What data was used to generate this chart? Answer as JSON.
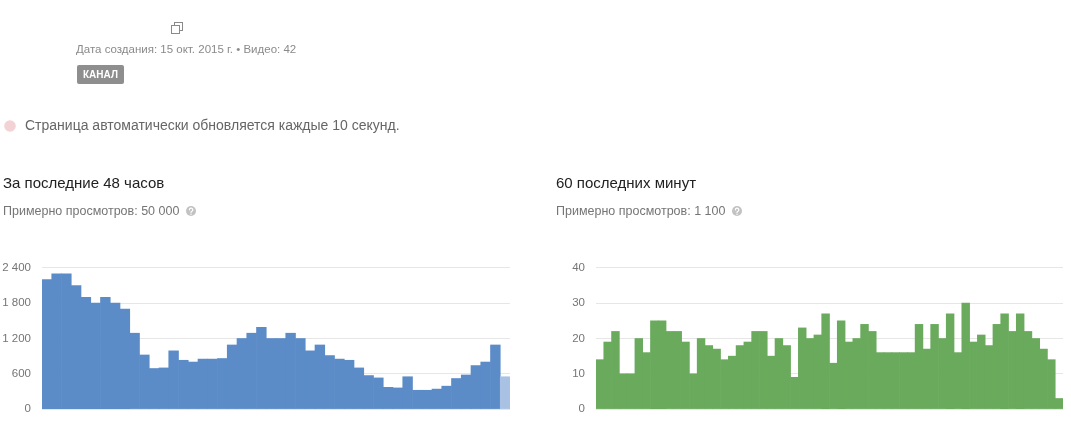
{
  "chart_data": [
    {
      "type": "other",
      "annotations": [
        "Дата создания: 15 окт. 2015 г. • Видео: 42",
        "КАНАЛ",
        "Страница автоматически обновляется каждые 10 секунд."
      ]
    },
    {
      "type": "bar",
      "title": "За последние 48 часов",
      "subtitle": "Примерно просмотров: 50 000",
      "categories": [
        null,
        null,
        null,
        null,
        null,
        null,
        null,
        null,
        null,
        null,
        null,
        null,
        null,
        null,
        null,
        null,
        null,
        null,
        null,
        null,
        null,
        null,
        null,
        null,
        null,
        null,
        null,
        null,
        null,
        null,
        null,
        null,
        null,
        null,
        null,
        null,
        null,
        null,
        null,
        null,
        null,
        null,
        null,
        null,
        null,
        null,
        null,
        null
      ],
      "values": [
        2200,
        2300,
        2300,
        2100,
        1900,
        1800,
        1900,
        1800,
        1700,
        1290,
        920,
        690,
        700,
        990,
        830,
        800,
        850,
        850,
        860,
        1090,
        1200,
        1290,
        1390,
        1200,
        1200,
        1290,
        1200,
        990,
        1090,
        910,
        850,
        830,
        700,
        570,
        530,
        370,
        360,
        550,
        320,
        320,
        340,
        390,
        520,
        580,
        740,
        800,
        1090,
        550
      ],
      "colors": [
        "#5b8cc8",
        "#5b8cc8",
        "#5b8cc8",
        "#5b8cc8",
        "#5b8cc8",
        "#5b8cc8",
        "#5b8cc8",
        "#5b8cc8",
        "#5b8cc8",
        "#5b8cc8",
        "#5b8cc8",
        "#5b8cc8",
        "#5b8cc8",
        "#5b8cc8",
        "#5b8cc8",
        "#5b8cc8",
        "#5b8cc8",
        "#5b8cc8",
        "#5b8cc8",
        "#5b8cc8",
        "#5b8cc8",
        "#5b8cc8",
        "#5b8cc8",
        "#5b8cc8",
        "#5b8cc8",
        "#5b8cc8",
        "#5b8cc8",
        "#5b8cc8",
        "#5b8cc8",
        "#5b8cc8",
        "#5b8cc8",
        "#5b8cc8",
        "#5b8cc8",
        "#5b8cc8",
        "#5b8cc8",
        "#5b8cc8",
        "#5b8cc8",
        "#5b8cc8",
        "#5b8cc8",
        "#5b8cc8",
        "#5b8cc8",
        "#5b8cc8",
        "#5b8cc8",
        "#5b8cc8",
        "#5b8cc8",
        "#5b8cc8",
        "#5b8cc8",
        "#a9c1e2"
      ],
      "ylim": [
        0,
        2400
      ],
      "yticks": [
        0,
        600,
        {
          "value": 1200,
          "label": "1 200"
        },
        {
          "value": 1800,
          "label": "1 800"
        },
        {
          "value": 2400,
          "label": "2 400"
        }
      ],
      "grid": "y",
      "tick_labels": "y"
    },
    {
      "type": "bar",
      "title": "60 последних минут",
      "subtitle": "Примерно просмотров: 1 100",
      "categories": [
        null,
        null,
        null,
        null,
        null,
        null,
        null,
        null,
        null,
        null,
        null,
        null,
        null,
        null,
        null,
        null,
        null,
        null,
        null,
        null,
        null,
        null,
        null,
        null,
        null,
        null,
        null,
        null,
        null,
        null,
        null,
        null,
        null,
        null,
        null,
        null,
        null,
        null,
        null,
        null,
        null,
        null,
        null,
        null,
        null,
        null,
        null,
        null,
        null,
        null,
        null,
        null,
        null,
        null,
        null,
        null,
        null,
        null,
        null,
        null
      ],
      "values": [
        14,
        19,
        22,
        10,
        10,
        20,
        16,
        25,
        25,
        22,
        22,
        19,
        10,
        20,
        18,
        17,
        14,
        15,
        18,
        19,
        22,
        22,
        15,
        20,
        18,
        9,
        23,
        20,
        21,
        27,
        13,
        25,
        19,
        20,
        24,
        22,
        16,
        16,
        16,
        16,
        16,
        24,
        17,
        24,
        20,
        27,
        16,
        30,
        19,
        21,
        18,
        24,
        27,
        22,
        27,
        22,
        20,
        17,
        14,
        3
      ],
      "color": "#6aaa5c",
      "ylim": [
        0,
        40
      ],
      "yticks": [
        0,
        10,
        20,
        30,
        40
      ],
      "grid": "y",
      "tick_labels": "y"
    }
  ]
}
